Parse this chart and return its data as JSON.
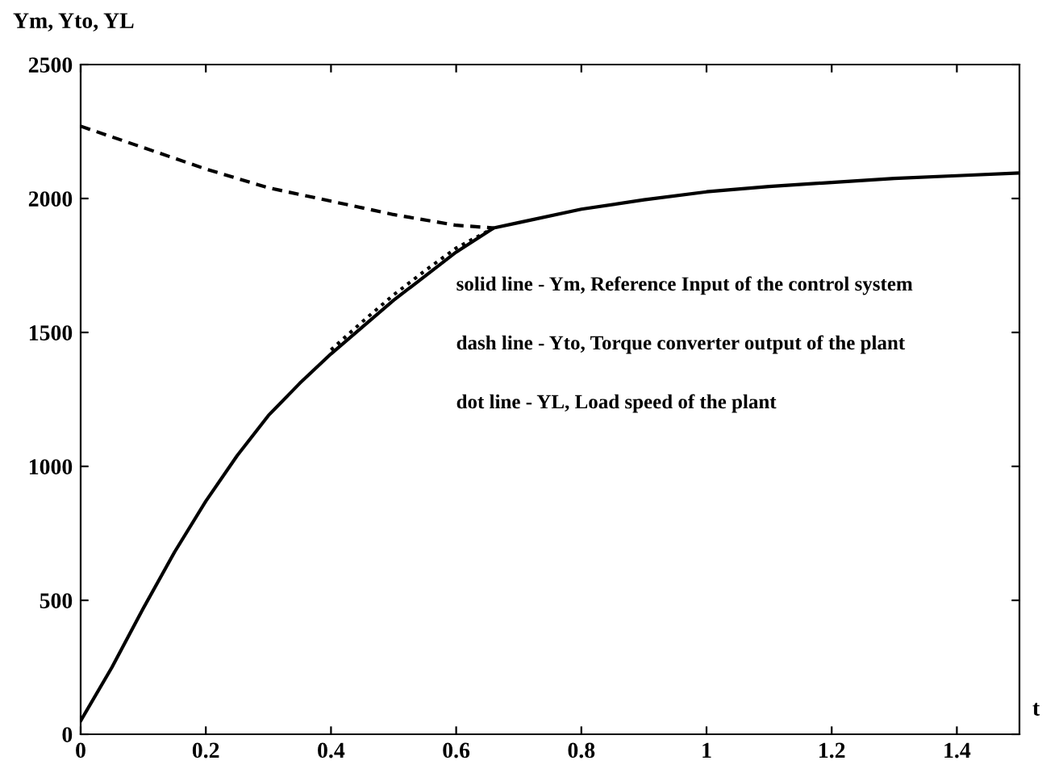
{
  "chart_data": {
    "type": "line",
    "ylabel": "Ym, Yto, YL",
    "xlabel": "t",
    "xlim": [
      0,
      1.5
    ],
    "xticks": [
      0,
      0.2,
      0.4,
      0.6,
      0.8,
      1,
      1.2,
      1.4
    ],
    "ylim": [
      0,
      2500
    ],
    "yticks": [
      0,
      500,
      1000,
      1500,
      2000,
      2500
    ],
    "grid": false,
    "legend": false,
    "marker": "none",
    "series": [
      {
        "color": "#000000",
        "line_style": "solid",
        "x": [
          0,
          0.05,
          0.1,
          0.15,
          0.2,
          0.25,
          0.3,
          0.35,
          0.4,
          0.45,
          0.5,
          0.55,
          0.6,
          0.66,
          0.7,
          0.8,
          0.9,
          1.0,
          1.1,
          1.2,
          1.3,
          1.4,
          1.5
        ],
        "values": [
          50,
          250,
          470,
          680,
          870,
          1040,
          1190,
          1310,
          1420,
          1520,
          1620,
          1710,
          1800,
          1890,
          1910,
          1960,
          1995,
          2025,
          2045,
          2060,
          2075,
          2085,
          2095
        ]
      },
      {
        "color": "#000000",
        "line_style": "dashed",
        "x": [
          0,
          0.1,
          0.2,
          0.3,
          0.4,
          0.5,
          0.6,
          0.66
        ],
        "values": [
          2270,
          2190,
          2110,
          2040,
          1990,
          1940,
          1900,
          1890
        ]
      },
      {
        "color": "#000000",
        "line_style": "dotted",
        "x": [
          0.4,
          0.45,
          0.5,
          0.55,
          0.6,
          0.66
        ],
        "values": [
          1435,
          1540,
          1640,
          1730,
          1815,
          1890
        ]
      }
    ],
    "annotations": [
      "solid line - Ym, Reference Input of the control system",
      "dash line - Yto, Torque converter output of the plant",
      "dot line - YL, Load speed of the plant"
    ]
  }
}
